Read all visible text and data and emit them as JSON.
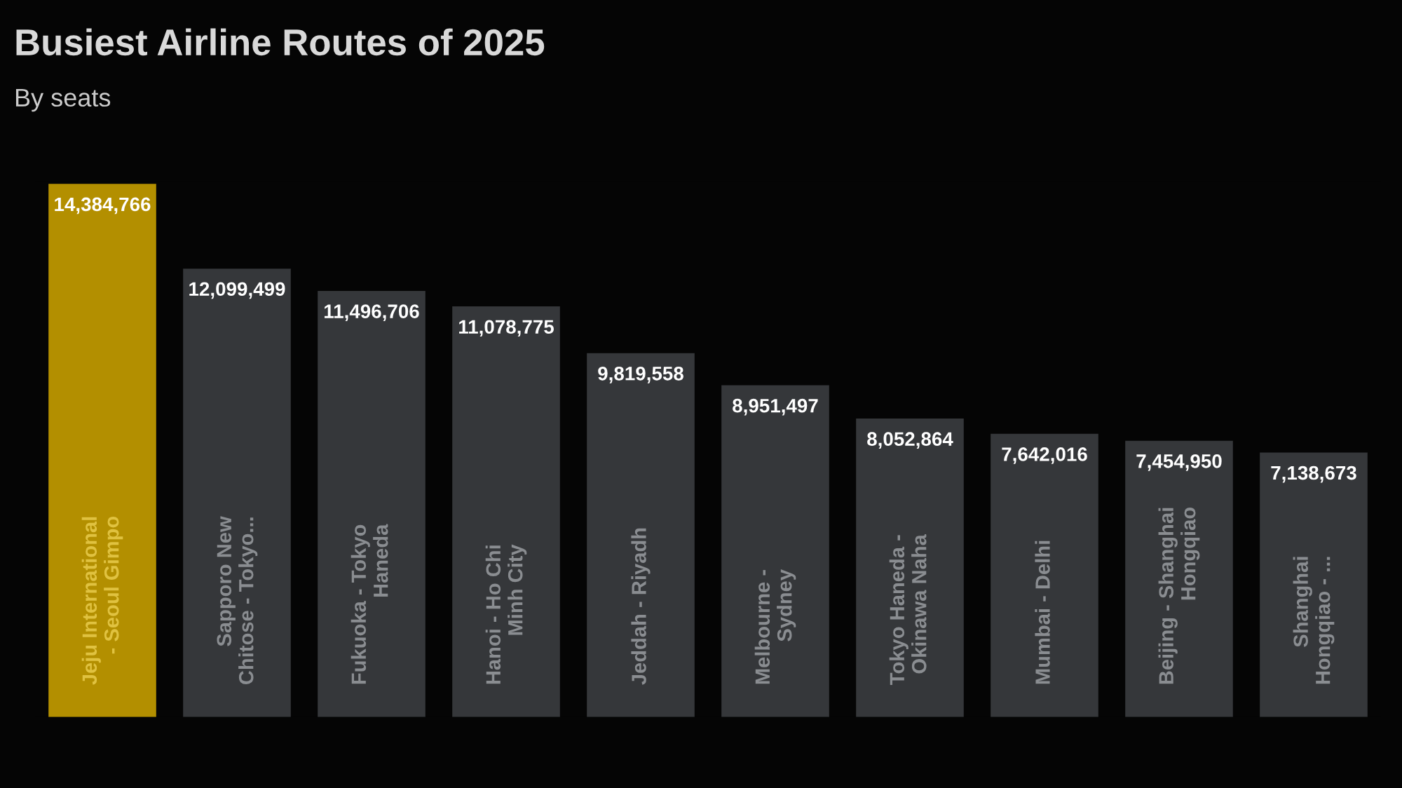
{
  "chart_data": {
    "type": "bar",
    "title": "Busiest Airline Routes of 2025",
    "subtitle": "By seats",
    "categories": [
      "Jeju International\n- Seoul Gimpo",
      "Sapporo New\nChitose - Tokyo...",
      "Fukuoka - Tokyo\nHaneda",
      "Hanoi - Ho Chi\nMinh City",
      "Jeddah - Riyadh",
      "Melbourne -\nSydney",
      "Tokyo Haneda -\nOkinawa Naha",
      "Mumbai - Delhi",
      "Beijing - Shanghai\nHongqiao",
      "Shanghai\nHongqiao - ..."
    ],
    "values": [
      14384766,
      12099499,
      11496706,
      11078775,
      9819558,
      8951497,
      8052864,
      7642016,
      7454950,
      7138673
    ],
    "value_labels": [
      "14,384,766",
      "12,099,499",
      "11,496,706",
      "11,078,775",
      "9,819,558",
      "8,951,497",
      "8,052,864",
      "7,642,016",
      "7,454,950",
      "7,138,673"
    ],
    "colors": [
      "#b38f00",
      "#35373a",
      "#35373a",
      "#35373a",
      "#35373a",
      "#35373a",
      "#35373a",
      "#35373a",
      "#35373a",
      "#35373a"
    ],
    "data_labels": false
  }
}
